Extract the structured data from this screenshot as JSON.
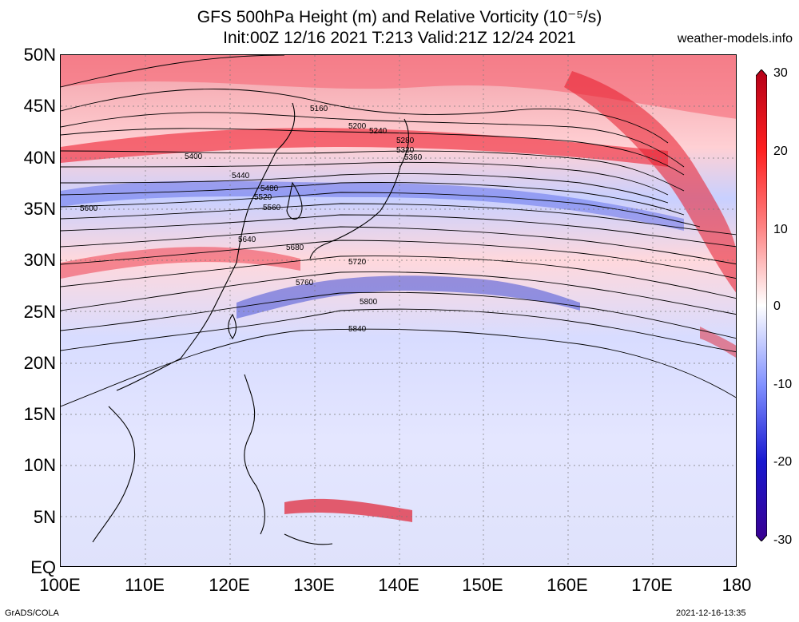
{
  "header": {
    "title_line1": "GFS 500hPa Height (m) and Relative Vorticity (10⁻⁵/s)",
    "title_line2": "Init:00Z 12/16 2021 T:213 Valid:21Z 12/24 2021",
    "site": "weather-models.info"
  },
  "axes": {
    "lat_labels": [
      "50N",
      "45N",
      "40N",
      "35N",
      "30N",
      "25N",
      "20N",
      "15N",
      "10N",
      "5N",
      "EQ"
    ],
    "lon_labels": [
      "100E",
      "110E",
      "120E",
      "130E",
      "140E",
      "150E",
      "160E",
      "170E",
      "180"
    ]
  },
  "colorbar": {
    "ticks": [
      "30",
      "20",
      "10",
      "0",
      "-10",
      "-20",
      "-30"
    ],
    "colors": {
      "max": "#b40018",
      "high": "#ff3030",
      "mid_high": "#ffb0b0",
      "zero": "#ffffff",
      "mid_low": "#b0b8ff",
      "low": "#3030e0",
      "min": "#3a0090"
    }
  },
  "contours": {
    "labels": [
      "5160",
      "5200",
      "5240",
      "5280",
      "5320",
      "5360",
      "5400",
      "5440",
      "5480",
      "5520",
      "5560",
      "5600",
      "5640",
      "5680",
      "5720",
      "5760",
      "5800",
      "5840"
    ]
  },
  "footer": {
    "left": "GrADS/COLA",
    "right": "2021-12-16-13:35"
  }
}
